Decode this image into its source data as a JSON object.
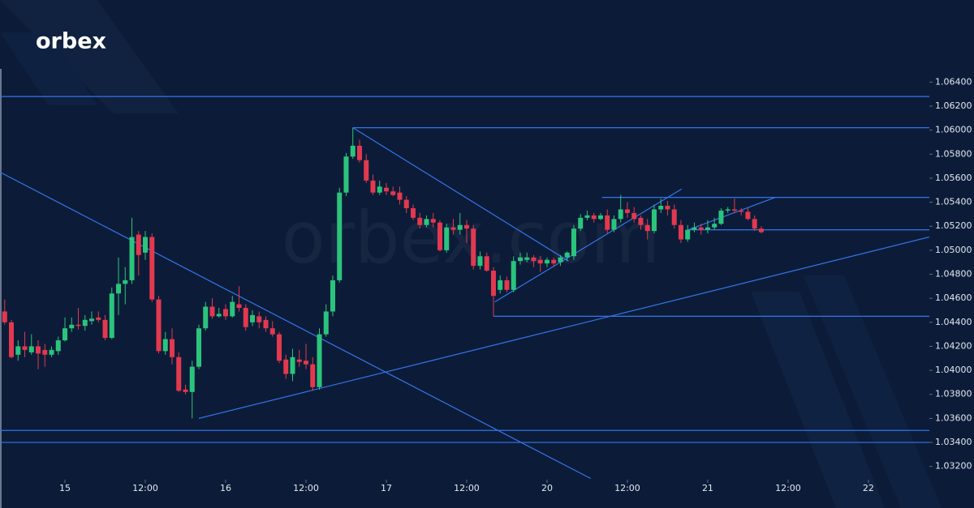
{
  "brand": "orbex",
  "watermark": "orbex.com",
  "chart_data": {
    "type": "candlestick",
    "x": [
      -9,
      -8,
      -7,
      -6,
      -5,
      -4,
      -3,
      -2,
      -1,
      0,
      1,
      2,
      3,
      4,
      5,
      6,
      7,
      8,
      9,
      10,
      11,
      12,
      13,
      14,
      15,
      16,
      17,
      18,
      19,
      20,
      21,
      22,
      23,
      24,
      25,
      26,
      27,
      28,
      29,
      30,
      31,
      32,
      33,
      34,
      35,
      36,
      37,
      38,
      39,
      40,
      41,
      42,
      43,
      44,
      45,
      46,
      47,
      48,
      49,
      50,
      51,
      52,
      53,
      54,
      55,
      56,
      57,
      58,
      59,
      60,
      61,
      62,
      63,
      64,
      65,
      66,
      67,
      68,
      69,
      70,
      71,
      72,
      73,
      74,
      75,
      76,
      77,
      78,
      79,
      80,
      81,
      82,
      83,
      84,
      85,
      86,
      87,
      88,
      89,
      90,
      91,
      92,
      93,
      94,
      95,
      96,
      97,
      98,
      99,
      100,
      101,
      102,
      103,
      104
    ],
    "open": [
      1.0449,
      1.044,
      1.0413,
      1.042,
      1.0415,
      1.042,
      1.0417,
      1.0413,
      1.0416,
      1.0425,
      1.0435,
      1.0438,
      1.0437,
      1.0441,
      1.0444,
      1.0442,
      1.0427,
      1.0464,
      1.0472,
      1.0475,
      1.0513,
      1.0498,
      1.0511,
      1.0459,
      1.0416,
      1.0426,
      1.0411,
      1.0384,
      1.0382,
      1.0403,
      1.0435,
      1.0453,
      1.0445,
      1.0451,
      1.0445,
      1.0455,
      1.0452,
      1.044,
      1.0445,
      1.0442,
      1.0435,
      1.043,
      1.0409,
      1.0397,
      1.0409,
      1.0408,
      1.0405,
      1.0386,
      1.043,
      1.0449,
      1.0475,
      1.0548,
      1.0578,
      1.0587,
      1.0575,
      1.0558,
      1.0548,
      1.0552,
      1.0549,
      1.0548,
      1.0542,
      1.0535,
      1.0527,
      1.0521,
      1.0526,
      1.0523,
      1.05,
      1.0519,
      1.0517,
      1.0521,
      1.0518,
      1.0487,
      1.0495,
      1.0483,
      1.0467,
      1.0475,
      1.0467,
      1.0491,
      1.0492,
      1.0494,
      1.0492,
      1.0489,
      1.0492,
      1.049,
      1.0494,
      1.0495,
      1.0518,
      1.0527,
      1.0529,
      1.0526,
      1.0529,
      1.0517,
      1.0526,
      1.0534,
      1.0531,
      1.0527,
      1.0521,
      1.0516,
      1.0534,
      1.0537,
      1.0534,
      1.0521,
      1.0509,
      1.0517,
      1.0519,
      1.0517,
      1.0519,
      1.0522,
      1.0533,
      1.0534,
      1.0533,
      1.0532,
      1.0526,
      1.0518
    ],
    "high": [
      1.0459,
      1.0442,
      1.0425,
      1.0432,
      1.043,
      1.0425,
      1.0422,
      1.042,
      1.0428,
      1.0444,
      1.0444,
      1.0452,
      1.0446,
      1.0449,
      1.0449,
      1.0446,
      1.0469,
      1.0494,
      1.0486,
      1.0527,
      1.0516,
      1.0516,
      1.0514,
      1.0462,
      1.0432,
      1.0435,
      1.0415,
      1.0388,
      1.0408,
      1.0438,
      1.0457,
      1.046,
      1.0452,
      1.0455,
      1.0462,
      1.047,
      1.0455,
      1.045,
      1.0449,
      1.0445,
      1.0441,
      1.0432,
      1.0413,
      1.0418,
      1.0417,
      1.0422,
      1.0411,
      1.0435,
      1.0455,
      1.0479,
      1.0552,
      1.0581,
      1.0602,
      1.0592,
      1.058,
      1.0563,
      1.0558,
      1.0556,
      1.0553,
      1.0553,
      1.0545,
      1.0538,
      1.0531,
      1.0529,
      1.0531,
      1.0525,
      1.0522,
      1.0526,
      1.0531,
      1.0525,
      1.0521,
      1.0499,
      1.0498,
      1.0486,
      1.0479,
      1.0478,
      1.0495,
      1.0498,
      1.0498,
      1.0496,
      1.0495,
      1.0494,
      1.0494,
      1.0496,
      1.0499,
      1.0521,
      1.053,
      1.0533,
      1.0531,
      1.0531,
      1.0534,
      1.0529,
      1.0546,
      1.054,
      1.0536,
      1.0529,
      1.0526,
      1.0538,
      1.0543,
      1.0541,
      1.0538,
      1.0525,
      1.0521,
      1.0523,
      1.0522,
      1.0525,
      1.0527,
      1.0535,
      1.0536,
      1.0543,
      1.0535,
      1.0535,
      1.0529,
      1.052
    ],
    "low": [
      1.0438,
      1.041,
      1.0408,
      1.0411,
      1.0413,
      1.0401,
      1.0403,
      1.0411,
      1.0413,
      1.0424,
      1.0432,
      1.0434,
      1.0433,
      1.0438,
      1.044,
      1.0425,
      1.0426,
      1.0446,
      1.0455,
      1.0472,
      1.0479,
      1.0492,
      1.0457,
      1.0414,
      1.0413,
      1.0405,
      1.0382,
      1.038,
      1.036,
      1.0401,
      1.0433,
      1.0443,
      1.0444,
      1.0442,
      1.0444,
      1.0449,
      1.0433,
      1.0437,
      1.0435,
      1.0432,
      1.0428,
      1.0406,
      1.0393,
      1.0391,
      1.0403,
      1.0401,
      1.0383,
      1.0384,
      1.0428,
      1.0445,
      1.0473,
      1.0545,
      1.0576,
      1.0573,
      1.0556,
      1.0546,
      1.0546,
      1.0546,
      1.0545,
      1.0538,
      1.0531,
      1.0525,
      1.0518,
      1.0519,
      1.0519,
      1.0499,
      1.0498,
      1.0513,
      1.0513,
      1.0506,
      1.0484,
      1.0484,
      1.0482,
      1.0445,
      1.0464,
      1.0465,
      1.0465,
      1.0488,
      1.049,
      1.0486,
      1.0482,
      1.0486,
      1.0486,
      1.0487,
      1.0491,
      1.0492,
      1.0516,
      1.0525,
      1.0523,
      1.0525,
      1.0514,
      1.0515,
      1.0523,
      1.0527,
      1.0523,
      1.0517,
      1.0509,
      1.0514,
      1.0531,
      1.0529,
      1.0518,
      1.0506,
      1.0507,
      1.0515,
      1.0513,
      1.0514,
      1.0517,
      1.0521,
      1.0531,
      1.0531,
      1.0529,
      1.0525,
      1.0516,
      1.0514
    ],
    "close": [
      1.044,
      1.0411,
      1.042,
      1.0417,
      1.042,
      1.0414,
      1.0413,
      1.0417,
      1.0425,
      1.0435,
      1.0438,
      1.0437,
      1.0442,
      1.0443,
      1.0442,
      1.0427,
      1.0464,
      1.0472,
      1.0475,
      1.0511,
      1.0496,
      1.0511,
      1.0459,
      1.0416,
      1.0426,
      1.0411,
      1.0383,
      1.0382,
      1.0403,
      1.0435,
      1.0453,
      1.0445,
      1.0447,
      1.0445,
      1.0457,
      1.0452,
      1.0436,
      1.0446,
      1.044,
      1.0435,
      1.043,
      1.0408,
      1.0397,
      1.0411,
      1.0407,
      1.0405,
      1.0386,
      1.043,
      1.0449,
      1.0475,
      1.0548,
      1.0578,
      1.0587,
      1.0575,
      1.0558,
      1.0548,
      1.0553,
      1.0549,
      1.0546,
      1.0542,
      1.0535,
      1.0527,
      1.0521,
      1.0526,
      1.0523,
      1.05,
      1.0519,
      1.0517,
      1.0521,
      1.0518,
      1.0487,
      1.0495,
      1.0483,
      1.0462,
      1.0475,
      1.0467,
      1.0491,
      1.0494,
      1.0494,
      1.0491,
      1.0489,
      1.0492,
      1.0489,
      1.0494,
      1.0498,
      1.0518,
      1.0527,
      1.0529,
      1.0526,
      1.0529,
      1.0517,
      1.0526,
      1.0534,
      1.0531,
      1.0526,
      1.0521,
      1.0516,
      1.0534,
      1.0537,
      1.0534,
      1.0521,
      1.0509,
      1.0517,
      1.0519,
      1.0517,
      1.0519,
      1.0522,
      1.0533,
      1.0534,
      1.0533,
      1.0532,
      1.0526,
      1.0518,
      1.0515
    ],
    "up_color": "#2bc47d",
    "down_color": "#e2394f",
    "line_color": "#3574ea",
    "xlim": [
      -9.7,
      129.1
    ],
    "ylim": [
      1.0309,
      1.0651
    ],
    "xticks": [
      {
        "value": 0,
        "label": "15"
      },
      {
        "value": 12,
        "label": "12:00"
      },
      {
        "value": 24,
        "label": "16"
      },
      {
        "value": 36,
        "label": "12:00"
      },
      {
        "value": 48,
        "label": "17"
      },
      {
        "value": 60,
        "label": "12:00"
      },
      {
        "value": 72,
        "label": "20"
      },
      {
        "value": 84,
        "label": "12:00"
      },
      {
        "value": 96,
        "label": "21"
      },
      {
        "value": 108,
        "label": "12:00"
      },
      {
        "value": 120,
        "label": "22"
      }
    ],
    "yticks": [
      {
        "value": 1.064,
        "label": "1.06400"
      },
      {
        "value": 1.062,
        "label": "1.06200"
      },
      {
        "value": 1.06,
        "label": "1.06000"
      },
      {
        "value": 1.058,
        "label": "1.05800"
      },
      {
        "value": 1.056,
        "label": "1.05600"
      },
      {
        "value": 1.054,
        "label": "1.05400"
      },
      {
        "value": 1.052,
        "label": "1.05200"
      },
      {
        "value": 1.05,
        "label": "1.05000"
      },
      {
        "value": 1.048,
        "label": "1.04800"
      },
      {
        "value": 1.046,
        "label": "1.04600"
      },
      {
        "value": 1.044,
        "label": "1.04400"
      },
      {
        "value": 1.042,
        "label": "1.04200"
      },
      {
        "value": 1.04,
        "label": "1.04000"
      },
      {
        "value": 1.038,
        "label": "1.03800"
      },
      {
        "value": 1.036,
        "label": "1.03600"
      },
      {
        "value": 1.034,
        "label": "1.03400"
      },
      {
        "value": 1.032,
        "label": "1.03200"
      }
    ],
    "levels": [
      {
        "value": 1.0628
      },
      {
        "value": 1.0602,
        "from": 43
      },
      {
        "value": 1.0544,
        "from": 80.2
      },
      {
        "value": 1.0517,
        "from": 93.1
      },
      {
        "value": 1.0445,
        "from": 64
      },
      {
        "value": 1.035
      },
      {
        "value": 1.034
      }
    ],
    "trendlines": [
      {
        "x": [
          -9.7,
          78.5
        ],
        "y": [
          1.0565,
          1.031
        ]
      },
      {
        "x": [
          20,
          129.1
        ],
        "y": [
          1.036,
          1.0511
        ]
      },
      {
        "x": [
          43,
          75.2
        ],
        "y": [
          1.0602,
          1.0491
        ]
      },
      {
        "x": [
          64.2,
          92.1
        ],
        "y": [
          1.0457,
          1.0551
        ]
      },
      {
        "x": [
          93.1,
          106.1
        ],
        "y": [
          1.0517,
          1.0544
        ]
      }
    ]
  }
}
